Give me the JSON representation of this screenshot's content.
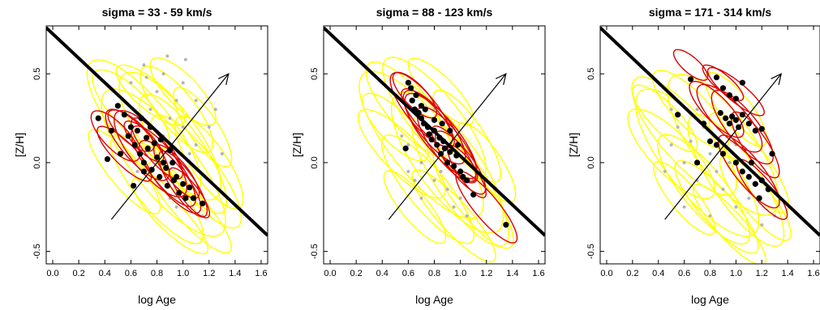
{
  "colors": {
    "all_galaxies_ellipse": "#ffff00",
    "subsample_ellipse": "#dd0000",
    "subsample_point": "#000000",
    "all_galaxies_point": "#b4b4b4",
    "relation_line": "#000000"
  },
  "chart_data": [
    {
      "type": "scatter",
      "title": "sigma =  33 -  59 km/s",
      "xlabel": "log Age",
      "ylabel": "[Z/H]",
      "xlim": [
        -0.05,
        1.65
      ],
      "ylim": [
        -0.57,
        0.77
      ],
      "xticks": [
        "0.0",
        "0.2",
        "0.4",
        "0.6",
        "0.8",
        "1.0",
        "1.2",
        "1.4",
        "1.6"
      ],
      "yticks": [
        "-0.5",
        "0.0",
        "0.5"
      ],
      "relation_line": {
        "x": [
          -0.05,
          1.65
        ],
        "y": [
          0.76,
          -0.41
        ]
      },
      "arrow": {
        "x": [
          0.45,
          1.35
        ],
        "y": [
          -0.32,
          0.5
        ]
      },
      "red_points": [
        [
          0.35,
          0.25
        ],
        [
          0.42,
          0.02
        ],
        [
          0.45,
          0.18
        ],
        [
          0.5,
          0.32
        ],
        [
          0.52,
          0.05
        ],
        [
          0.55,
          0.27
        ],
        [
          0.58,
          0.15
        ],
        [
          0.6,
          0.2
        ],
        [
          0.62,
          -0.13
        ],
        [
          0.63,
          0.1
        ],
        [
          0.65,
          0.18
        ],
        [
          0.67,
          0.05
        ],
        [
          0.68,
          0.25
        ],
        [
          0.7,
          -0.05
        ],
        [
          0.72,
          0.14
        ],
        [
          0.73,
          0.08
        ],
        [
          0.75,
          0.2
        ],
        [
          0.76,
          -0.04
        ],
        [
          0.78,
          0.11
        ],
        [
          0.8,
          0.03
        ],
        [
          0.82,
          -0.08
        ],
        [
          0.83,
          0.13
        ],
        [
          0.85,
          0.0
        ],
        [
          0.87,
          -0.03
        ],
        [
          0.9,
          0.07
        ],
        [
          0.92,
          0.0
        ],
        [
          0.93,
          -0.1
        ],
        [
          0.95,
          -0.08
        ],
        [
          0.97,
          -0.17
        ],
        [
          1.0,
          -0.12
        ],
        [
          1.02,
          -0.2
        ],
        [
          1.05,
          -0.14
        ],
        [
          1.08,
          -0.2
        ],
        [
          1.15,
          -0.23
        ],
        [
          0.88,
          -0.13
        ],
        [
          0.7,
          0.0
        ]
      ],
      "red_ellipses": [
        [
          0.48,
          0.15,
          0.22,
          0.08,
          -35
        ],
        [
          0.65,
          0.1,
          0.3,
          0.1,
          -38
        ],
        [
          0.75,
          0.05,
          0.35,
          0.12,
          -40
        ],
        [
          0.85,
          -0.02,
          0.32,
          0.1,
          -42
        ],
        [
          0.6,
          0.18,
          0.2,
          0.07,
          -30
        ],
        [
          0.9,
          -0.08,
          0.3,
          0.09,
          -40
        ],
        [
          1.0,
          -0.12,
          0.25,
          0.08,
          -45
        ],
        [
          0.7,
          0.12,
          0.18,
          0.06,
          -35
        ],
        [
          0.95,
          -0.05,
          0.22,
          0.07,
          -40
        ],
        [
          0.55,
          0.05,
          0.25,
          0.07,
          -35
        ],
        [
          0.8,
          0.08,
          0.25,
          0.08,
          -40
        ],
        [
          1.05,
          -0.17,
          0.2,
          0.06,
          -42
        ]
      ],
      "yellow_ellipses": [
        [
          0.7,
          0.2,
          0.55,
          0.18,
          -40
        ],
        [
          0.9,
          0.15,
          0.5,
          0.18,
          -42
        ],
        [
          0.85,
          0.0,
          0.6,
          0.2,
          -40
        ],
        [
          1.0,
          0.05,
          0.45,
          0.15,
          -45
        ],
        [
          1.1,
          -0.05,
          0.45,
          0.14,
          -42
        ],
        [
          0.6,
          0.3,
          0.35,
          0.12,
          -35
        ],
        [
          0.95,
          0.3,
          0.35,
          0.12,
          -40
        ],
        [
          1.2,
          0.0,
          0.35,
          0.12,
          -45
        ],
        [
          0.8,
          -0.15,
          0.45,
          0.13,
          -40
        ],
        [
          1.05,
          -0.25,
          0.4,
          0.1,
          -38
        ],
        [
          0.75,
          0.38,
          0.3,
          0.09,
          -30
        ],
        [
          1.0,
          0.4,
          0.3,
          0.1,
          -35
        ],
        [
          0.55,
          -0.05,
          0.35,
          0.1,
          -40
        ],
        [
          1.15,
          0.2,
          0.3,
          0.1,
          -45
        ],
        [
          0.9,
          -0.3,
          0.35,
          0.09,
          -35
        ]
      ],
      "gray_points": [
        [
          0.7,
          0.55
        ],
        [
          0.85,
          0.5
        ],
        [
          1.0,
          0.45
        ],
        [
          1.1,
          0.35
        ],
        [
          0.95,
          0.35
        ],
        [
          1.2,
          0.2
        ],
        [
          1.3,
          0.05
        ],
        [
          0.8,
          0.4
        ],
        [
          0.9,
          0.25
        ],
        [
          1.0,
          0.2
        ],
        [
          1.1,
          0.1
        ],
        [
          1.2,
          -0.1
        ],
        [
          0.6,
          0.45
        ],
        [
          0.75,
          0.3
        ],
        [
          1.25,
          0.3
        ],
        [
          0.95,
          -0.25
        ],
        [
          0.85,
          0.15
        ],
        [
          1.05,
          0.05
        ],
        [
          0.65,
          -0.05
        ],
        [
          0.9,
          -0.2
        ],
        [
          1.15,
          -0.3
        ],
        [
          0.72,
          0.48
        ],
        [
          0.88,
          0.6
        ],
        [
          1.02,
          0.58
        ]
      ]
    },
    {
      "type": "scatter",
      "title": "sigma =  88 - 123 km/s",
      "xlabel": "log Age",
      "ylabel": "[Z/H]",
      "xlim": [
        -0.05,
        1.65
      ],
      "ylim": [
        -0.57,
        0.77
      ],
      "xticks": [
        "0.0",
        "0.2",
        "0.4",
        "0.6",
        "0.8",
        "1.0",
        "1.2",
        "1.4",
        "1.6"
      ],
      "yticks": [
        "-0.5",
        "0.0",
        "0.5"
      ],
      "relation_line": {
        "x": [
          -0.05,
          1.65
        ],
        "y": [
          0.76,
          -0.41
        ]
      },
      "arrow": {
        "x": [
          0.45,
          1.35
        ],
        "y": [
          -0.32,
          0.5
        ]
      },
      "red_points": [
        [
          0.6,
          0.45
        ],
        [
          0.62,
          0.42
        ],
        [
          0.63,
          0.35
        ],
        [
          0.65,
          0.3
        ],
        [
          0.68,
          0.28
        ],
        [
          0.7,
          0.25
        ],
        [
          0.72,
          0.22
        ],
        [
          0.75,
          0.2
        ],
        [
          0.76,
          0.16
        ],
        [
          0.78,
          0.13
        ],
        [
          0.8,
          0.18
        ],
        [
          0.82,
          0.1
        ],
        [
          0.84,
          0.14
        ],
        [
          0.85,
          0.05
        ],
        [
          0.87,
          0.12
        ],
        [
          0.88,
          0.08
        ],
        [
          0.9,
          0.0
        ],
        [
          0.92,
          0.06
        ],
        [
          0.95,
          -0.02
        ],
        [
          0.97,
          0.04
        ],
        [
          1.0,
          -0.05
        ],
        [
          1.02,
          -0.08
        ],
        [
          1.05,
          -0.1
        ],
        [
          1.1,
          -0.18
        ],
        [
          1.35,
          -0.35
        ],
        [
          0.7,
          0.32
        ],
        [
          0.66,
          0.38
        ],
        [
          0.73,
          0.3
        ],
        [
          0.8,
          0.24
        ],
        [
          0.58,
          0.08
        ],
        [
          0.92,
          0.18
        ],
        [
          0.98,
          0.1
        ],
        [
          0.86,
          0.22
        ]
      ],
      "red_ellipses": [
        [
          0.7,
          0.3,
          0.3,
          0.1,
          -40
        ],
        [
          0.8,
          0.2,
          0.3,
          0.1,
          -40
        ],
        [
          0.9,
          0.1,
          0.3,
          0.1,
          -42
        ],
        [
          1.0,
          0.0,
          0.25,
          0.08,
          -42
        ],
        [
          0.65,
          0.38,
          0.2,
          0.07,
          -35
        ],
        [
          1.2,
          -0.25,
          0.3,
          0.08,
          -40
        ],
        [
          0.85,
          0.15,
          0.35,
          0.11,
          -40
        ],
        [
          0.75,
          0.25,
          0.25,
          0.08,
          -38
        ],
        [
          1.05,
          -0.05,
          0.2,
          0.06,
          -45
        ],
        [
          0.95,
          0.05,
          0.22,
          0.07,
          -42
        ]
      ],
      "yellow_ellipses": [
        [
          0.7,
          0.1,
          0.6,
          0.2,
          -40
        ],
        [
          0.9,
          0.0,
          0.55,
          0.2,
          -42
        ],
        [
          0.8,
          0.25,
          0.5,
          0.16,
          -40
        ],
        [
          1.0,
          -0.1,
          0.5,
          0.16,
          -45
        ],
        [
          0.6,
          0.3,
          0.4,
          0.13,
          -38
        ],
        [
          1.1,
          -0.2,
          0.4,
          0.12,
          -42
        ],
        [
          0.75,
          -0.15,
          0.45,
          0.13,
          -40
        ],
        [
          0.55,
          0.05,
          0.4,
          0.12,
          -35
        ],
        [
          1.05,
          0.15,
          0.35,
          0.11,
          -45
        ],
        [
          0.95,
          -0.3,
          0.4,
          0.1,
          -38
        ],
        [
          0.85,
          0.4,
          0.3,
          0.09,
          -35
        ],
        [
          0.65,
          -0.25,
          0.3,
          0.09,
          -40
        ],
        [
          1.2,
          0.0,
          0.3,
          0.1,
          -45
        ],
        [
          0.5,
          0.2,
          0.3,
          0.1,
          -35
        ]
      ],
      "gray_points": [
        [
          0.7,
          0.0
        ],
        [
          0.8,
          -0.1
        ],
        [
          0.9,
          -0.15
        ],
        [
          1.0,
          -0.2
        ],
        [
          0.6,
          0.1
        ],
        [
          0.75,
          0.1
        ],
        [
          0.85,
          -0.05
        ],
        [
          0.95,
          -0.25
        ],
        [
          1.1,
          -0.1
        ],
        [
          0.65,
          -0.1
        ],
        [
          0.55,
          0.15
        ],
        [
          1.0,
          0.1
        ],
        [
          1.2,
          -0.15
        ],
        [
          0.8,
          0.3
        ],
        [
          0.7,
          -0.2
        ],
        [
          0.9,
          0.25
        ],
        [
          0.6,
          -0.05
        ],
        [
          1.05,
          -0.3
        ]
      ]
    },
    {
      "type": "scatter",
      "title": "sigma = 171 - 314 km/s",
      "xlabel": "log Age",
      "ylabel": "[Z/H]",
      "xlim": [
        -0.05,
        1.65
      ],
      "ylim": [
        -0.57,
        0.77
      ],
      "xticks": [
        "0.0",
        "0.2",
        "0.4",
        "0.6",
        "0.8",
        "1.0",
        "1.2",
        "1.4",
        "1.6"
      ],
      "yticks": [
        "-0.5",
        "0.0",
        "0.5"
      ],
      "relation_line": {
        "x": [
          -0.05,
          1.65
        ],
        "y": [
          0.76,
          -0.41
        ]
      },
      "arrow": {
        "x": [
          0.45,
          1.35
        ],
        "y": [
          -0.32,
          0.5
        ]
      },
      "red_points": [
        [
          0.65,
          0.47
        ],
        [
          0.85,
          0.48
        ],
        [
          0.9,
          0.42
        ],
        [
          0.95,
          0.38
        ],
        [
          1.0,
          0.36
        ],
        [
          1.05,
          0.45
        ],
        [
          0.88,
          0.28
        ],
        [
          0.92,
          0.25
        ],
        [
          0.95,
          0.22
        ],
        [
          0.97,
          0.26
        ],
        [
          1.0,
          0.24
        ],
        [
          1.02,
          0.2
        ],
        [
          1.05,
          0.27
        ],
        [
          1.1,
          0.22
        ],
        [
          1.15,
          0.18
        ],
        [
          1.2,
          0.19
        ],
        [
          0.75,
          0.22
        ],
        [
          0.8,
          0.12
        ],
        [
          0.85,
          0.1
        ],
        [
          0.9,
          0.05
        ],
        [
          1.0,
          0.0
        ],
        [
          1.05,
          -0.05
        ],
        [
          1.1,
          -0.08
        ],
        [
          1.15,
          -0.12
        ],
        [
          1.2,
          -0.1
        ],
        [
          1.25,
          -0.15
        ],
        [
          1.28,
          0.05
        ],
        [
          0.55,
          0.27
        ],
        [
          0.7,
          0.0
        ],
        [
          1.12,
          0.0
        ],
        [
          1.18,
          -0.2
        ]
      ],
      "red_ellipses": [
        [
          0.95,
          0.25,
          0.3,
          0.1,
          -35
        ],
        [
          1.05,
          0.2,
          0.3,
          0.1,
          -40
        ],
        [
          1.1,
          -0.05,
          0.3,
          0.09,
          -40
        ],
        [
          1.0,
          0.4,
          0.25,
          0.06,
          -30
        ],
        [
          0.65,
          0.55,
          0.15,
          0.05,
          -30
        ],
        [
          1.15,
          0.1,
          0.25,
          0.08,
          -45
        ],
        [
          1.2,
          -0.15,
          0.25,
          0.07,
          -40
        ],
        [
          0.85,
          0.3,
          0.25,
          0.08,
          -35
        ],
        [
          0.9,
          0.45,
          0.18,
          0.05,
          -30
        ]
      ],
      "yellow_ellipses": [
        [
          0.7,
          0.0,
          0.6,
          0.2,
          -40
        ],
        [
          0.9,
          0.1,
          0.55,
          0.2,
          -42
        ],
        [
          0.6,
          0.15,
          0.5,
          0.16,
          -38
        ],
        [
          1.0,
          -0.1,
          0.5,
          0.16,
          -45
        ],
        [
          0.75,
          -0.15,
          0.45,
          0.14,
          -40
        ],
        [
          0.5,
          0.05,
          0.4,
          0.13,
          -35
        ],
        [
          1.1,
          0.0,
          0.4,
          0.12,
          -42
        ],
        [
          0.85,
          -0.25,
          0.4,
          0.11,
          -38
        ],
        [
          0.65,
          0.3,
          0.35,
          0.11,
          -35
        ],
        [
          1.15,
          -0.2,
          0.35,
          0.1,
          -40
        ],
        [
          0.45,
          0.25,
          0.3,
          0.09,
          -35
        ],
        [
          0.95,
          -0.35,
          0.35,
          0.09,
          -38
        ],
        [
          0.6,
          -0.2,
          0.3,
          0.09,
          -40
        ],
        [
          1.0,
          0.3,
          0.3,
          0.1,
          -40
        ]
      ],
      "gray_points": [
        [
          0.5,
          0.1
        ],
        [
          0.6,
          0.0
        ],
        [
          0.7,
          -0.1
        ],
        [
          0.8,
          0.05
        ],
        [
          0.9,
          -0.15
        ],
        [
          1.0,
          -0.25
        ],
        [
          0.55,
          0.2
        ],
        [
          0.65,
          0.12
        ],
        [
          0.75,
          0.2
        ],
        [
          0.85,
          -0.05
        ],
        [
          0.95,
          0.0
        ],
        [
          1.1,
          -0.2
        ],
        [
          0.45,
          -0.05
        ],
        [
          0.7,
          0.3
        ],
        [
          1.2,
          -0.35
        ],
        [
          0.6,
          -0.25
        ],
        [
          0.8,
          -0.3
        ],
        [
          1.0,
          0.1
        ],
        [
          0.5,
          0.3
        ],
        [
          1.3,
          -0.3
        ]
      ]
    }
  ]
}
